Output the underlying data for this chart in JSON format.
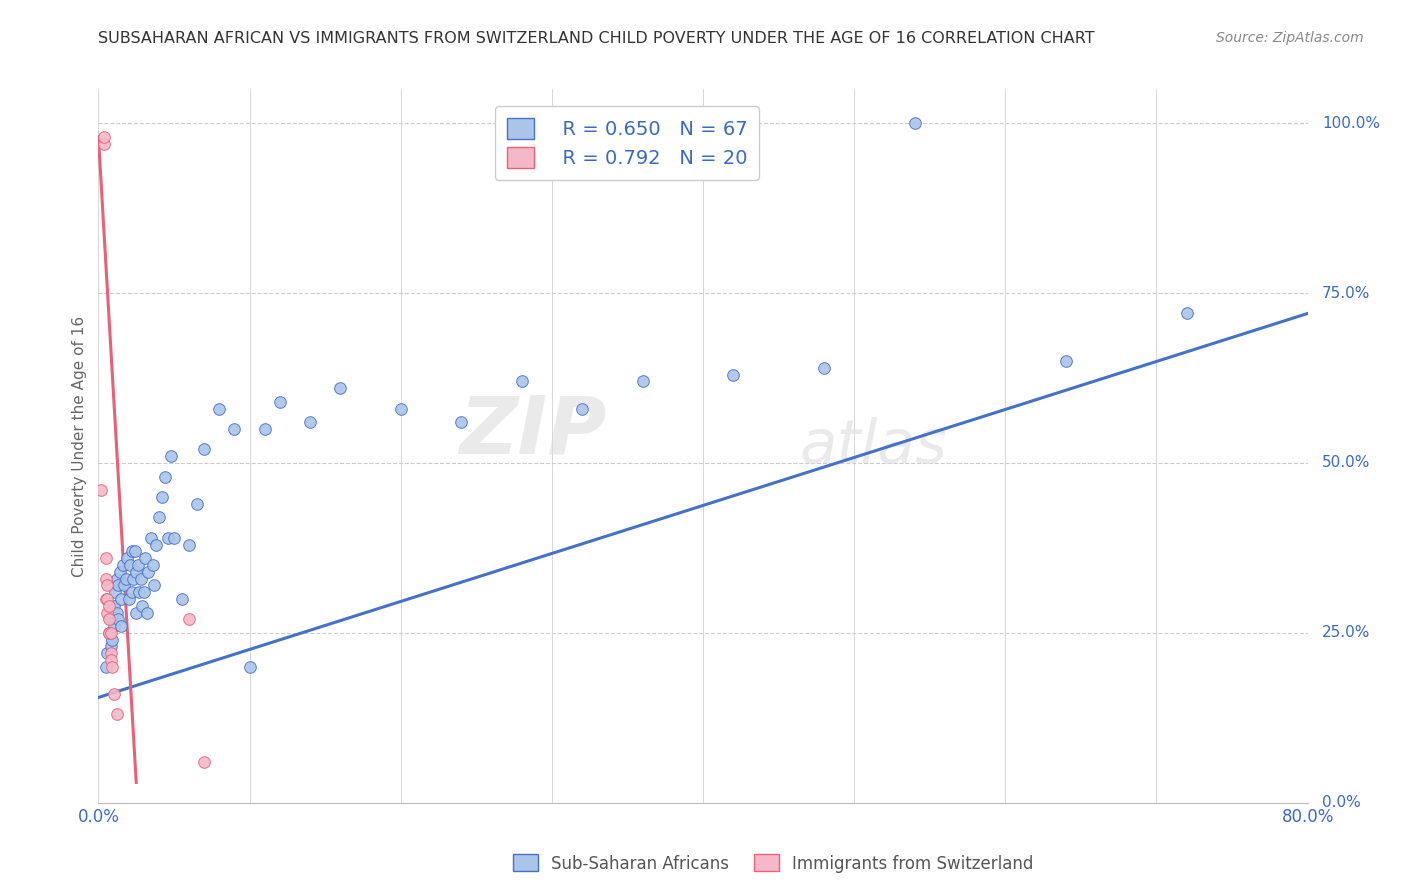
{
  "title": "SUBSAHARAN AFRICAN VS IMMIGRANTS FROM SWITZERLAND CHILD POVERTY UNDER THE AGE OF 16 CORRELATION CHART",
  "source": "Source: ZipAtlas.com",
  "ylabel": "Child Poverty Under the Age of 16",
  "legend_label1": "Sub-Saharan Africans",
  "legend_label2": "Immigrants from Switzerland",
  "legend_R1": "R = 0.650",
  "legend_N1": "N = 67",
  "legend_R2": "R = 0.792",
  "legend_N2": "N = 20",
  "color_blue": "#aac4ea",
  "color_pink": "#f5b8c8",
  "line_blue": "#4472c4",
  "line_pink": "#e8607a",
  "bg_color": "#ffffff",
  "watermark_zip": "ZIP",
  "watermark_atlas": "atlas",
  "blue_scatter_x": [
    0.005,
    0.006,
    0.007,
    0.008,
    0.008,
    0.009,
    0.01,
    0.01,
    0.011,
    0.012,
    0.012,
    0.013,
    0.013,
    0.014,
    0.015,
    0.015,
    0.016,
    0.017,
    0.018,
    0.019,
    0.02,
    0.021,
    0.022,
    0.022,
    0.023,
    0.024,
    0.025,
    0.025,
    0.026,
    0.027,
    0.028,
    0.029,
    0.03,
    0.031,
    0.032,
    0.033,
    0.035,
    0.036,
    0.037,
    0.038,
    0.04,
    0.042,
    0.044,
    0.046,
    0.048,
    0.05,
    0.055,
    0.06,
    0.065,
    0.07,
    0.08,
    0.09,
    0.1,
    0.11,
    0.12,
    0.14,
    0.16,
    0.2,
    0.24,
    0.28,
    0.32,
    0.36,
    0.42,
    0.48,
    0.54,
    0.64,
    0.72
  ],
  "blue_scatter_y": [
    0.2,
    0.22,
    0.25,
    0.23,
    0.27,
    0.24,
    0.26,
    0.29,
    0.31,
    0.28,
    0.33,
    0.27,
    0.32,
    0.34,
    0.26,
    0.3,
    0.35,
    0.32,
    0.33,
    0.36,
    0.3,
    0.35,
    0.31,
    0.37,
    0.33,
    0.37,
    0.28,
    0.34,
    0.35,
    0.31,
    0.33,
    0.29,
    0.31,
    0.36,
    0.28,
    0.34,
    0.39,
    0.35,
    0.32,
    0.38,
    0.42,
    0.45,
    0.48,
    0.39,
    0.51,
    0.39,
    0.3,
    0.38,
    0.44,
    0.52,
    0.58,
    0.55,
    0.2,
    0.55,
    0.59,
    0.56,
    0.61,
    0.58,
    0.56,
    0.62,
    0.58,
    0.62,
    0.63,
    0.64,
    1.0,
    0.65,
    0.72
  ],
  "pink_scatter_x": [
    0.002,
    0.004,
    0.004,
    0.005,
    0.005,
    0.005,
    0.006,
    0.006,
    0.006,
    0.007,
    0.007,
    0.007,
    0.008,
    0.008,
    0.008,
    0.009,
    0.01,
    0.012,
    0.06,
    0.07
  ],
  "pink_scatter_y": [
    0.46,
    0.97,
    0.98,
    0.36,
    0.33,
    0.3,
    0.28,
    0.3,
    0.32,
    0.25,
    0.27,
    0.29,
    0.22,
    0.25,
    0.21,
    0.2,
    0.16,
    0.13,
    0.27,
    0.06
  ],
  "blue_line_x": [
    0.0,
    0.8
  ],
  "blue_line_y": [
    0.155,
    0.72
  ],
  "pink_line_x": [
    0.0,
    0.025
  ],
  "pink_line_y": [
    0.98,
    0.03
  ],
  "xlim": [
    0.0,
    0.8
  ],
  "ylim": [
    0.0,
    1.05
  ],
  "xticks": [
    0.0,
    0.1,
    0.2,
    0.3,
    0.4,
    0.5,
    0.6,
    0.7,
    0.8
  ],
  "yticks": [
    0.0,
    0.25,
    0.5,
    0.75,
    1.0
  ]
}
